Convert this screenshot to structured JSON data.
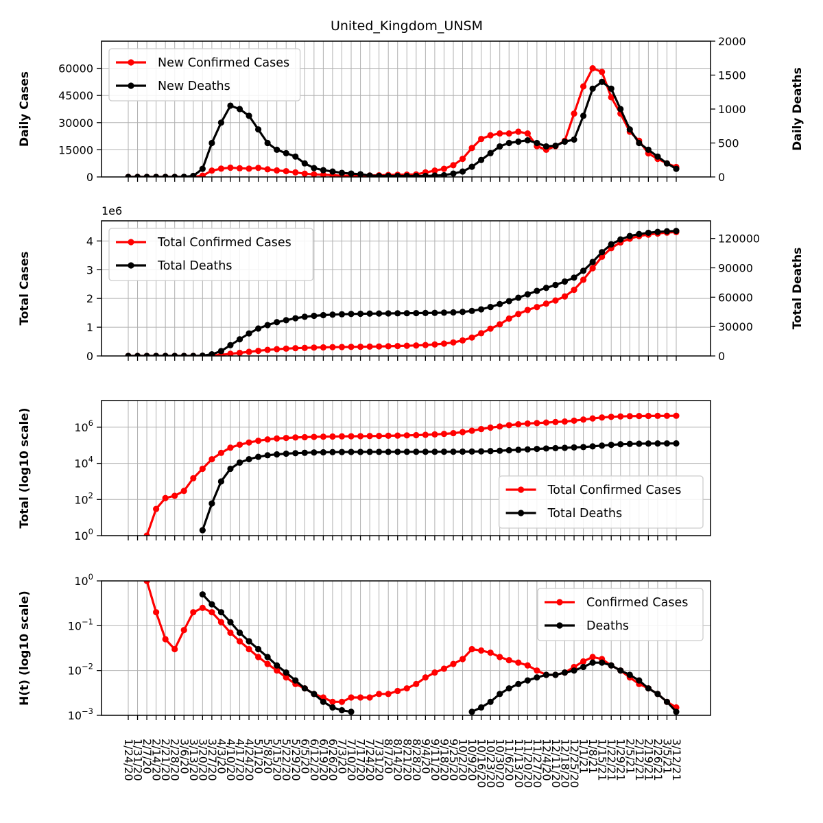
{
  "title": "United_Kingdom_UNSM",
  "colors": {
    "cases": "#ff0000",
    "deaths": "#000000",
    "grid": "#b0b0b0"
  },
  "x_dates": [
    "1/24/20",
    "1/31/20",
    "2/7/20",
    "2/14/20",
    "2/21/20",
    "2/28/20",
    "3/6/20",
    "3/13/20",
    "3/20/20",
    "3/27/20",
    "4/3/20",
    "4/10/20",
    "4/17/20",
    "4/24/20",
    "5/1/20",
    "5/8/20",
    "5/15/20",
    "5/22/20",
    "5/29/20",
    "6/5/20",
    "6/12/20",
    "6/19/20",
    "6/26/20",
    "7/3/20",
    "7/10/20",
    "7/17/20",
    "7/24/20",
    "7/31/20",
    "8/7/20",
    "8/14/20",
    "8/21/20",
    "8/28/20",
    "9/4/20",
    "9/11/20",
    "9/18/20",
    "9/25/20",
    "10/2/20",
    "10/9/20",
    "10/16/20",
    "10/23/20",
    "10/30/20",
    "11/6/20",
    "11/13/20",
    "11/20/20",
    "11/27/20",
    "12/4/20",
    "12/11/20",
    "12/18/20",
    "12/25/20",
    "1/1/21",
    "1/8/21",
    "1/15/21",
    "1/22/21",
    "1/29/21",
    "2/5/21",
    "2/12/21",
    "2/19/21",
    "2/26/21",
    "3/5/21",
    "3/12/21"
  ],
  "chart_data": [
    {
      "type": "line",
      "ylabel": "Daily Cases",
      "ylabel_right": "Daily Deaths",
      "ylim": [
        0,
        75000
      ],
      "ylim_right": [
        0,
        2000
      ],
      "yticks": [
        0,
        15000,
        30000,
        45000,
        60000
      ],
      "yticks_right": [
        0,
        500,
        1000,
        1500,
        2000
      ],
      "legend": "top-left",
      "series": [
        {
          "name": "New Confirmed Cases",
          "axis": "left",
          "color": "#ff0000",
          "values": [
            0,
            0,
            0,
            0,
            1,
            3,
            10,
            80,
            700,
            3500,
            4600,
            5100,
            4800,
            4600,
            5000,
            4200,
            3600,
            3200,
            2500,
            1800,
            1400,
            1200,
            1000,
            700,
            650,
            750,
            800,
            900,
            1100,
            1200,
            1300,
            1400,
            2500,
            3500,
            4500,
            6500,
            10000,
            16000,
            21000,
            23000,
            24000,
            24000,
            25000,
            24000,
            17000,
            15000,
            17000,
            20000,
            35000,
            50000,
            60000,
            58000,
            44000,
            35000,
            25000,
            20000,
            13000,
            10000,
            7500,
            5500
          ]
        },
        {
          "name": "New Deaths",
          "axis": "right",
          "color": "#000000",
          "values": [
            0,
            0,
            0,
            0,
            0,
            0,
            2,
            15,
            120,
            500,
            800,
            1050,
            1000,
            900,
            700,
            500,
            400,
            350,
            300,
            200,
            130,
            100,
            80,
            60,
            50,
            40,
            20,
            15,
            15,
            15,
            15,
            15,
            15,
            20,
            25,
            50,
            80,
            150,
            250,
            350,
            450,
            500,
            520,
            540,
            500,
            450,
            460,
            520,
            550,
            900,
            1300,
            1400,
            1300,
            1000,
            700,
            500,
            400,
            300,
            200,
            120
          ]
        }
      ]
    },
    {
      "type": "line",
      "ylabel": "Total Cases",
      "ylabel_right": "Total Deaths",
      "offset_text": "1e6",
      "ylim": [
        0,
        4700000
      ],
      "ylim_right": [
        0,
        138000
      ],
      "yticks": [
        0,
        1000000,
        2000000,
        3000000,
        4000000
      ],
      "ytick_labels": [
        "0",
        "1",
        "2",
        "3",
        "4"
      ],
      "yticks_right": [
        0,
        30000,
        60000,
        90000,
        120000
      ],
      "legend": "top-left",
      "series": [
        {
          "name": "Total Confirmed Cases",
          "axis": "left",
          "color": "#ff0000",
          "values": [
            0,
            0,
            0,
            0,
            9,
            20,
            160,
            800,
            4000,
            17000,
            38000,
            74000,
            108000,
            143000,
            178000,
            211000,
            237000,
            255000,
            270000,
            281000,
            291000,
            299000,
            306000,
            311000,
            316000,
            320000,
            325000,
            330000,
            337000,
            345000,
            354000,
            364000,
            380000,
            400000,
            430000,
            470000,
            540000,
            640000,
            790000,
            950000,
            1100000,
            1300000,
            1460000,
            1600000,
            1700000,
            1820000,
            1930000,
            2070000,
            2300000,
            2650000,
            3050000,
            3450000,
            3750000,
            3950000,
            4080000,
            4170000,
            4220000,
            4260000,
            4290000,
            4310000
          ]
        },
        {
          "name": "Total Deaths",
          "axis": "right",
          "color": "#000000",
          "values": [
            0,
            0,
            0,
            0,
            0,
            0,
            2,
            20,
            250,
            1700,
            5000,
            11000,
            17000,
            23000,
            28000,
            31500,
            34500,
            36500,
            38500,
            40000,
            41000,
            41700,
            42200,
            42600,
            42900,
            43100,
            43250,
            43350,
            43450,
            43550,
            43650,
            43750,
            43850,
            44000,
            44200,
            44500,
            45000,
            46000,
            47600,
            50000,
            53000,
            56000,
            59500,
            63000,
            66500,
            69500,
            72500,
            76000,
            80000,
            87000,
            96000,
            106000,
            114000,
            119000,
            122500,
            124500,
            125800,
            126700,
            127300,
            127700
          ]
        }
      ]
    },
    {
      "type": "line",
      "ylabel": "Total (log10 scale)",
      "yscale": "log",
      "ylim": [
        1,
        30000000
      ],
      "yticks": [
        1,
        100,
        10000,
        1000000
      ],
      "ytick_labels": [
        [
          "10",
          "0"
        ],
        [
          "10",
          "2"
        ],
        [
          "10",
          "4"
        ],
        [
          "10",
          "6"
        ]
      ],
      "legend": "bottom-right",
      "series": [
        {
          "name": "Total Confirmed Cases",
          "color": "#ff0000",
          "values": [
            null,
            null,
            1,
            30,
            120,
            160,
            300,
            1500,
            5000,
            17000,
            38000,
            74000,
            108000,
            143000,
            178000,
            211000,
            237000,
            255000,
            270000,
            281000,
            291000,
            299000,
            306000,
            311000,
            316000,
            320000,
            325000,
            330000,
            337000,
            345000,
            354000,
            364000,
            380000,
            400000,
            430000,
            470000,
            540000,
            640000,
            790000,
            950000,
            1100000,
            1300000,
            1460000,
            1600000,
            1700000,
            1820000,
            1930000,
            2070000,
            2300000,
            2650000,
            3050000,
            3450000,
            3750000,
            3950000,
            4080000,
            4170000,
            4220000,
            4260000,
            4290000,
            4310000
          ]
        },
        {
          "name": "Total Deaths",
          "color": "#000000",
          "values": [
            null,
            null,
            null,
            null,
            null,
            null,
            null,
            null,
            2,
            60,
            1000,
            5000,
            11000,
            17000,
            23000,
            28000,
            31500,
            34500,
            36500,
            38500,
            40000,
            41000,
            41700,
            42200,
            42600,
            42900,
            43100,
            43250,
            43350,
            43450,
            43550,
            43650,
            43750,
            43850,
            44000,
            44200,
            44500,
            45000,
            46000,
            47600,
            50000,
            53000,
            56000,
            59500,
            63000,
            66500,
            69500,
            72500,
            76000,
            80000,
            87000,
            96000,
            106000,
            114000,
            119000,
            122500,
            124500,
            125800,
            126700,
            127300
          ]
        }
      ]
    },
    {
      "type": "line",
      "ylabel": "H(t) (log10 scale)",
      "yscale": "log",
      "ylim": [
        0.001,
        1
      ],
      "yticks": [
        0.001,
        0.01,
        0.1,
        1
      ],
      "ytick_labels": [
        [
          "10",
          "−3"
        ],
        [
          "10",
          "−2"
        ],
        [
          "10",
          "−1"
        ],
        [
          "10",
          "0"
        ]
      ],
      "legend": "top-right",
      "series": [
        {
          "name": "Confirmed Cases",
          "color": "#ff0000",
          "values": [
            null,
            null,
            1,
            0.2,
            0.05,
            0.03,
            0.08,
            0.2,
            0.25,
            0.2,
            0.12,
            0.07,
            0.045,
            0.03,
            0.02,
            0.014,
            0.01,
            0.007,
            0.005,
            0.004,
            0.003,
            0.0025,
            0.002,
            0.002,
            0.0025,
            0.0025,
            0.0025,
            0.003,
            0.003,
            0.0035,
            0.004,
            0.005,
            0.007,
            0.009,
            0.011,
            0.014,
            0.018,
            0.03,
            0.028,
            0.025,
            0.02,
            0.017,
            0.015,
            0.013,
            0.01,
            0.008,
            0.008,
            0.009,
            0.012,
            0.016,
            0.02,
            0.018,
            0.013,
            0.01,
            0.007,
            0.005,
            0.004,
            0.003,
            0.002,
            0.0015
          ]
        },
        {
          "name": "Deaths",
          "color": "#000000",
          "values": [
            null,
            null,
            null,
            null,
            null,
            null,
            null,
            null,
            0.5,
            0.3,
            0.2,
            0.12,
            0.07,
            0.045,
            0.03,
            0.02,
            0.013,
            0.009,
            0.006,
            0.004,
            0.003,
            0.002,
            0.0015,
            0.0013,
            0.0012,
            null,
            null,
            null,
            null,
            null,
            null,
            null,
            null,
            null,
            null,
            null,
            null,
            0.0012,
            0.0015,
            0.002,
            0.003,
            0.004,
            0.005,
            0.006,
            0.007,
            0.008,
            0.008,
            0.009,
            0.01,
            0.012,
            0.015,
            0.015,
            0.013,
            0.01,
            0.008,
            0.006,
            0.004,
            0.003,
            0.002,
            0.0012
          ]
        }
      ]
    }
  ]
}
